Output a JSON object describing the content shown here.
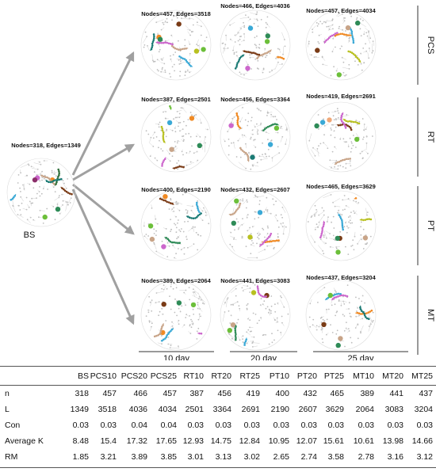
{
  "diagram": {
    "source": {
      "label": "BS",
      "stats": "Nodes=318, Edges=1349",
      "colors": [
        "#f08a24",
        "#3aa9d6",
        "#6cbf3a",
        "#c8a488",
        "#2e8b57",
        "#2f6e3a",
        "#cc66cc",
        "#7a3b16",
        "#8b2f6a",
        "#1a7a74"
      ]
    },
    "rows": [
      {
        "group": "PCS",
        "panels": [
          {
            "stats": "Nodes=457, Edges=3518",
            "colors": [
              "#f08a24",
              "#3aa9d6",
              "#6cbf3a",
              "#c8a488",
              "#2e8b57",
              "#cc66cc",
              "#7a3b16",
              "#1a7a74",
              "#b8c020"
            ]
          },
          {
            "stats": "Nodes=466, Edges=4036",
            "colors": [
              "#3aa9d6",
              "#c8a488",
              "#2e8b57",
              "#f08a24",
              "#6cbf3a",
              "#7a3b16",
              "#cc66cc",
              "#1a7a74"
            ]
          },
          {
            "stats": "Nodes=457, Edges=4034",
            "colors": [
              "#7a3b16",
              "#3aa9d6",
              "#c8a488",
              "#f08a24",
              "#2e8b57",
              "#cc66cc",
              "#6cbf3a",
              "#b8c020"
            ]
          }
        ]
      },
      {
        "group": "RT",
        "panels": [
          {
            "stats": "Nodes=387, Edges=2501",
            "colors": [
              "#f08a24",
              "#6cbf3a",
              "#3aa9d6",
              "#7a3b16",
              "#c8a488",
              "#cc66cc",
              "#2e8b57",
              "#b8c020"
            ]
          },
          {
            "stats": "Nodes=456, Edges=3364",
            "colors": [
              "#3aa9d6",
              "#c8a488",
              "#6cbf3a",
              "#2e8b57",
              "#cc66cc",
              "#f08a24",
              "#1a7a74"
            ]
          },
          {
            "stats": "Nodes=419, Edges=2691",
            "colors": [
              "#f0a878",
              "#7a3b16",
              "#3aa9d6",
              "#c8a488",
              "#6cbf3a",
              "#cc66cc",
              "#2e8b57",
              "#b8c020"
            ]
          }
        ]
      },
      {
        "group": "PT",
        "panels": [
          {
            "stats": "Nodes=400, Edges=2190",
            "colors": [
              "#f08a24",
              "#3aa9d6",
              "#c8a488",
              "#2e8b57",
              "#6cbf3a",
              "#7a3b16",
              "#cc66cc",
              "#1a7a74"
            ]
          },
          {
            "stats": "Nodes=432, Edges=2607",
            "colors": [
              "#3aa9d6",
              "#c8a488",
              "#2e8b57",
              "#f08a24",
              "#6cbf3a",
              "#cc66cc",
              "#b8c020"
            ]
          },
          {
            "stats": "Nodes=465, Edges=3629",
            "colors": [
              "#7a3b16",
              "#3aa9d6",
              "#c8a488",
              "#f08a24",
              "#2e8b57",
              "#cc66cc",
              "#6cbf3a",
              "#b8c020"
            ]
          }
        ]
      },
      {
        "group": "MT",
        "panels": [
          {
            "stats": "Nodes=389, Edges=2064",
            "colors": [
              "#f08a24",
              "#3aa9d6",
              "#6cbf3a",
              "#c8a488",
              "#2e8b57",
              "#cc66cc",
              "#7a3b16"
            ]
          },
          {
            "stats": "Nodes=441, Edges=3083",
            "colors": [
              "#6cbf3a",
              "#3aa9d6",
              "#c8a488",
              "#2e8b57",
              "#7a3b16",
              "#cc66cc",
              "#b8c020"
            ]
          },
          {
            "stats": "Nodes=437, Edges=3204",
            "colors": [
              "#7a3b16",
              "#3aa9d6",
              "#c8a488",
              "#f08a24",
              "#2e8b57",
              "#cc66cc",
              "#6cbf3a",
              "#1a7a74"
            ]
          }
        ]
      }
    ],
    "time_labels": [
      "10 day",
      "20 day",
      "25 day"
    ]
  },
  "table": {
    "headers": [
      "",
      "BS",
      "PCS10",
      "PCS20",
      "PCS25",
      "RT10",
      "RT20",
      "RT25",
      "PT10",
      "PT20",
      "PT25",
      "MT10",
      "MT20",
      "MT25"
    ],
    "rows": [
      [
        "n",
        "318",
        "457",
        "466",
        "457",
        "387",
        "456",
        "419",
        "400",
        "432",
        "465",
        "389",
        "441",
        "437"
      ],
      [
        "L",
        "1349",
        "3518",
        "4036",
        "4034",
        "2501",
        "3364",
        "2691",
        "2190",
        "2607",
        "3629",
        "2064",
        "3083",
        "3204"
      ],
      [
        "Con",
        "0.03",
        "0.03",
        "0.04",
        "0.04",
        "0.03",
        "0.03",
        "0.03",
        "0.03",
        "0.03",
        "0.03",
        "0.03",
        "0.03",
        "0.03"
      ],
      [
        "Average K",
        "8.48",
        "15.4",
        "17.32",
        "17.65",
        "12.93",
        "14.75",
        "12.84",
        "10.95",
        "12.07",
        "15.61",
        "10.61",
        "13.98",
        "14.66"
      ],
      [
        "RM",
        "1.85",
        "3.21",
        "3.89",
        "3.85",
        "3.01",
        "3.13",
        "3.02",
        "2.65",
        "2.74",
        "3.58",
        "2.78",
        "3.16",
        "3.12"
      ]
    ]
  }
}
